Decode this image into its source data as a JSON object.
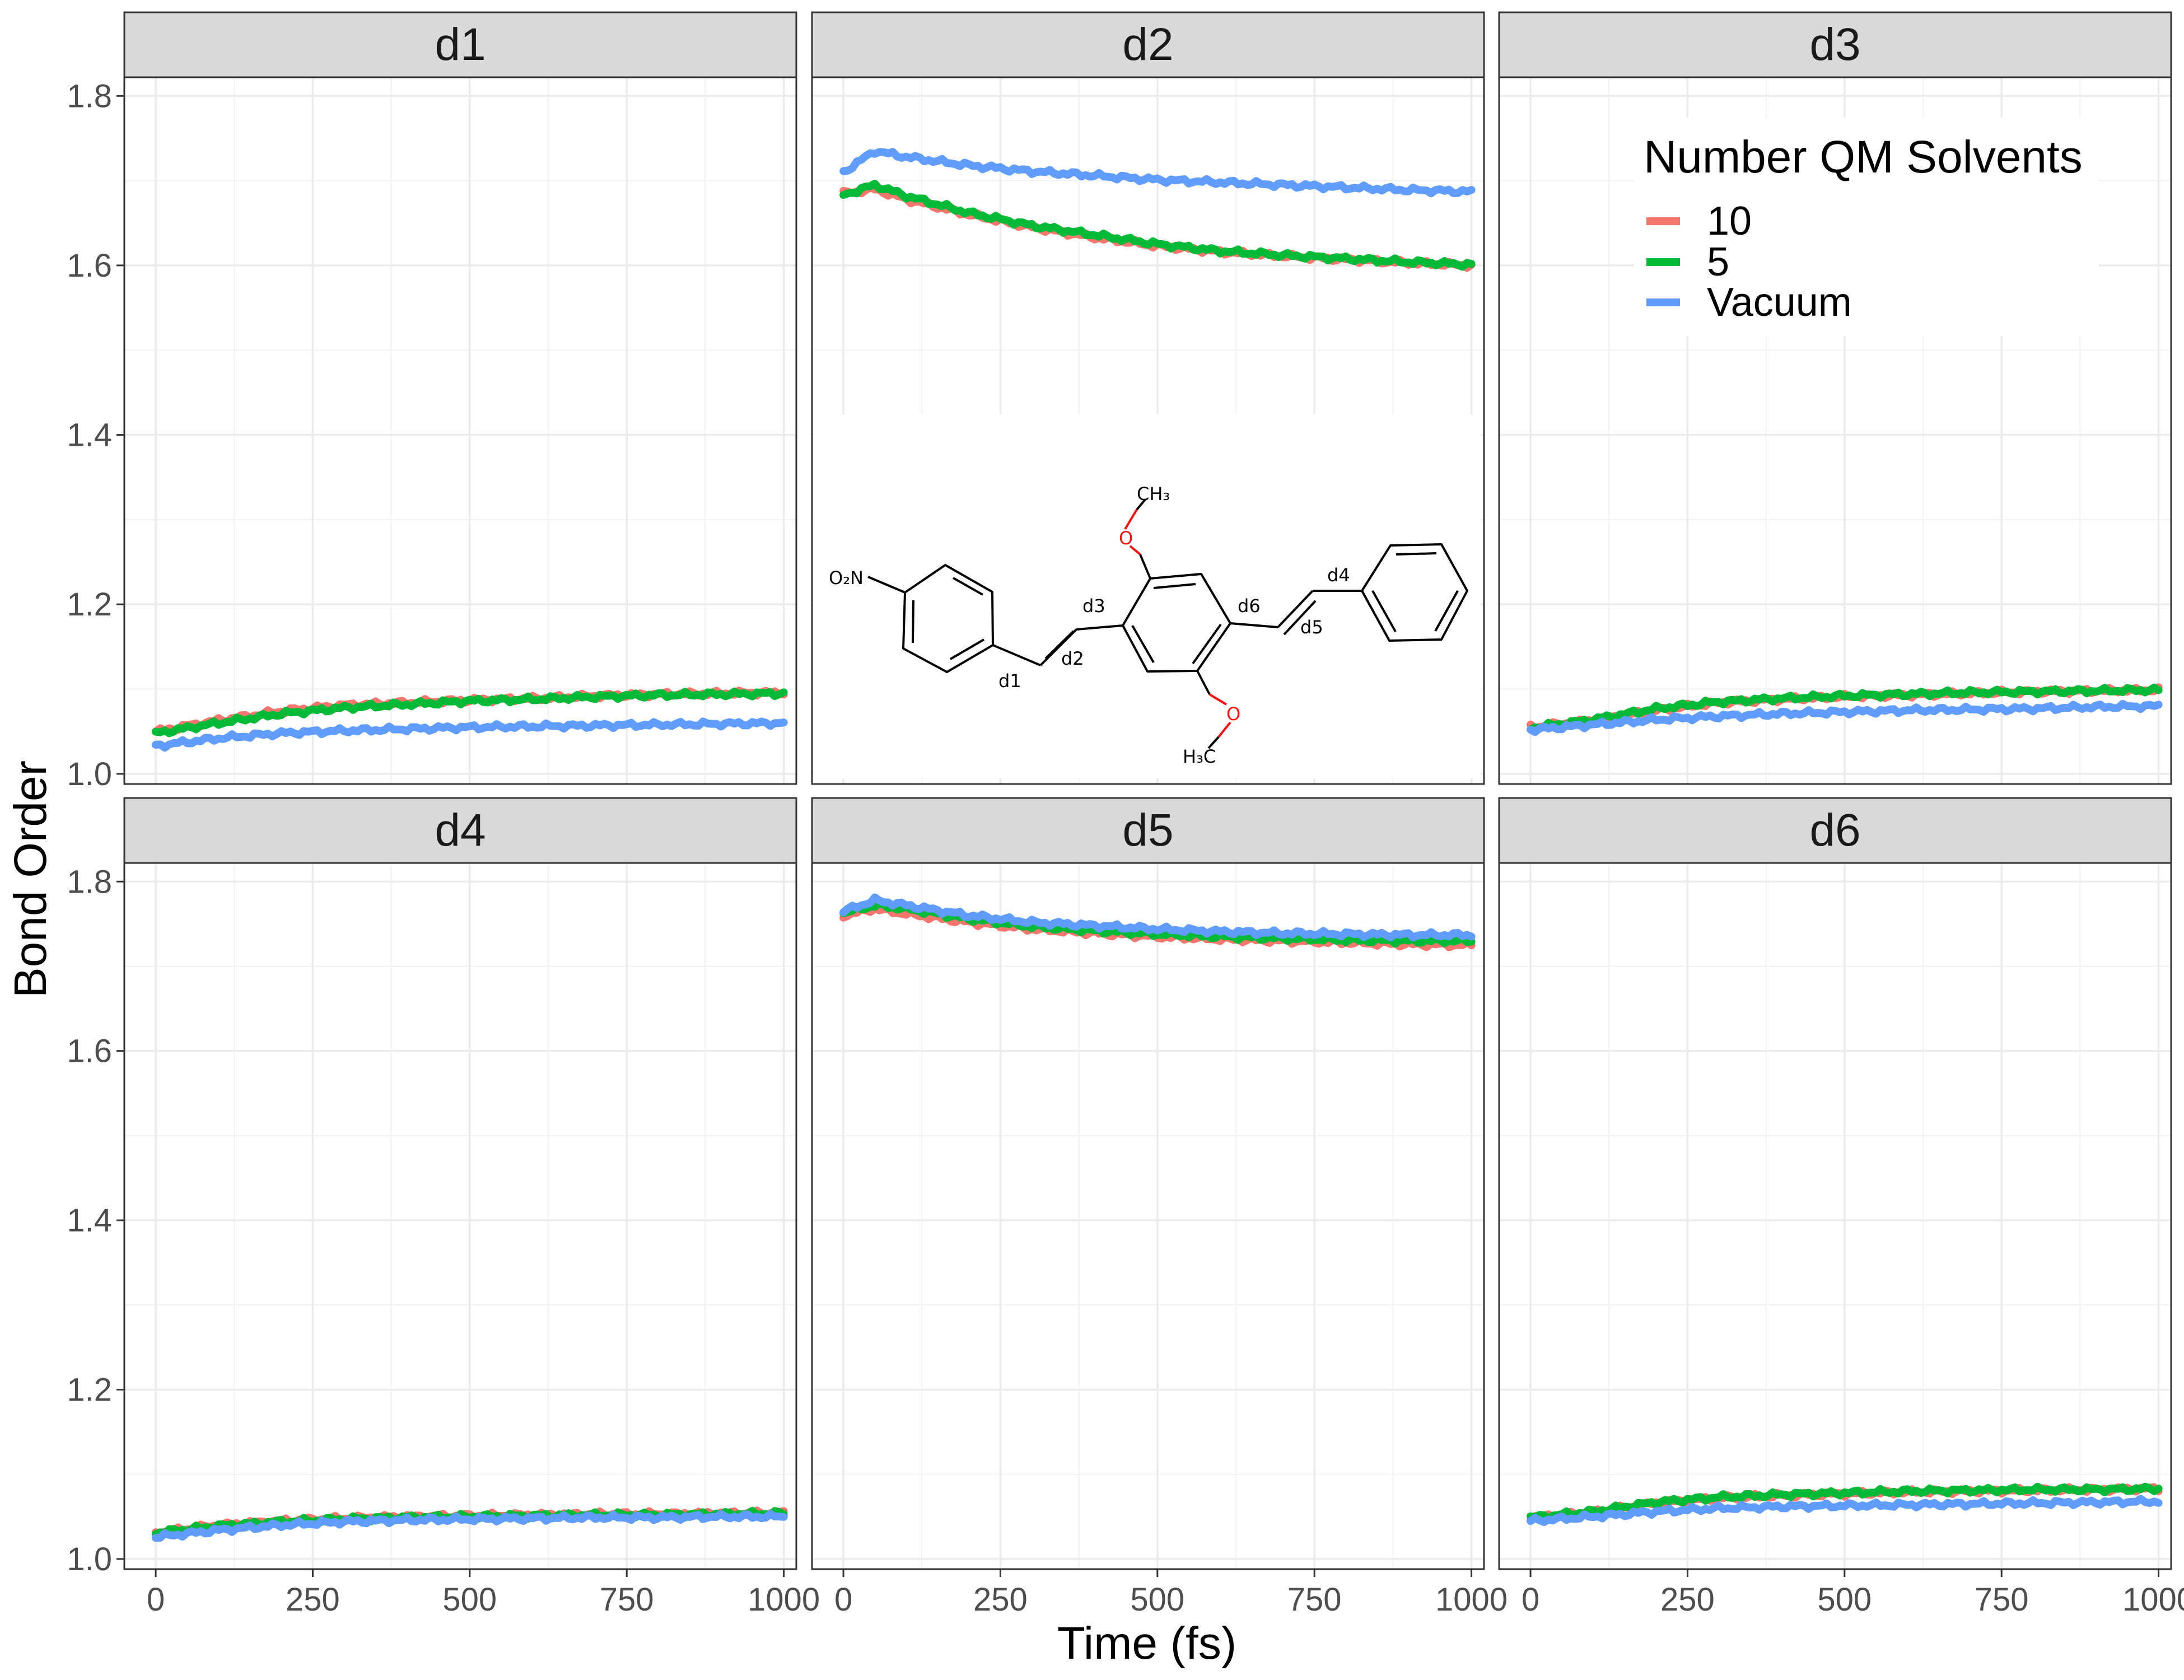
{
  "chart_data": {
    "type": "line",
    "xlabel": "Time (fs)",
    "ylabel": "Bond Order",
    "xlim": [
      -50,
      1020
    ],
    "ylim": [
      0.988,
      1.822
    ],
    "x_ticks": [
      0,
      250,
      500,
      750,
      1000
    ],
    "y_ticks": [
      1.0,
      1.2,
      1.4,
      1.6,
      1.8
    ],
    "y_tick_labels": [
      "1.0",
      "1.2",
      "1.4",
      "1.6",
      "1.8"
    ],
    "grid": true,
    "legend": {
      "title": "Number QM Solvents",
      "position": "top-right",
      "entries": [
        "10",
        "5",
        "Vacuum"
      ]
    },
    "series_colors": {
      "10": "#F8766D",
      "5": "#00BA38",
      "Vacuum": "#619CFF"
    },
    "panels": [
      {
        "title": "d1",
        "x": [
          0,
          100,
          200,
          300,
          400,
          500,
          600,
          700,
          800,
          900,
          1000
        ],
        "series": [
          {
            "name": "10",
            "values": [
              1.05,
              1.063,
              1.074,
              1.081,
              1.084,
              1.087,
              1.089,
              1.092,
              1.094,
              1.095,
              1.096
            ]
          },
          {
            "name": "5",
            "values": [
              1.048,
              1.06,
              1.071,
              1.078,
              1.082,
              1.086,
              1.088,
              1.091,
              1.093,
              1.094,
              1.095
            ]
          },
          {
            "name": "Vacuum",
            "values": [
              1.033,
              1.042,
              1.048,
              1.051,
              1.053,
              1.055,
              1.056,
              1.057,
              1.058,
              1.059,
              1.06
            ]
          }
        ]
      },
      {
        "title": "d2",
        "x": [
          0,
          50,
          100,
          200,
          300,
          400,
          500,
          600,
          700,
          800,
          900,
          1000
        ],
        "series": [
          {
            "name": "10",
            "values": [
              1.685,
              1.69,
              1.678,
              1.66,
              1.645,
              1.633,
              1.623,
              1.616,
              1.611,
              1.607,
              1.603,
              1.6
            ]
          },
          {
            "name": "5",
            "values": [
              1.683,
              1.695,
              1.682,
              1.662,
              1.647,
              1.636,
              1.625,
              1.617,
              1.612,
              1.608,
              1.604,
              1.601
            ]
          },
          {
            "name": "Vacuum",
            "values": [
              1.71,
              1.735,
              1.728,
              1.718,
              1.711,
              1.706,
              1.701,
              1.698,
              1.695,
              1.692,
              1.689,
              1.687
            ]
          }
        ]
      },
      {
        "title": "d3",
        "x": [
          0,
          100,
          200,
          300,
          400,
          500,
          600,
          700,
          800,
          900,
          1000
        ],
        "series": [
          {
            "name": "10",
            "values": [
              1.055,
              1.063,
              1.075,
              1.084,
              1.088,
              1.091,
              1.093,
              1.095,
              1.097,
              1.098,
              1.099
            ]
          },
          {
            "name": "5",
            "values": [
              1.054,
              1.064,
              1.077,
              1.085,
              1.089,
              1.092,
              1.094,
              1.096,
              1.097,
              1.098,
              1.099
            ]
          },
          {
            "name": "Vacuum",
            "values": [
              1.052,
              1.058,
              1.064,
              1.068,
              1.071,
              1.073,
              1.075,
              1.076,
              1.077,
              1.079,
              1.08
            ]
          }
        ]
      },
      {
        "title": "d4",
        "x": [
          0,
          100,
          200,
          300,
          400,
          500,
          600,
          700,
          800,
          900,
          1000
        ],
        "series": [
          {
            "name": "10",
            "values": [
              1.031,
              1.04,
              1.045,
              1.048,
              1.05,
              1.051,
              1.052,
              1.053,
              1.053,
              1.054,
              1.054
            ]
          },
          {
            "name": "5",
            "values": [
              1.031,
              1.039,
              1.044,
              1.047,
              1.049,
              1.05,
              1.051,
              1.052,
              1.052,
              1.053,
              1.054
            ]
          },
          {
            "name": "Vacuum",
            "values": [
              1.026,
              1.034,
              1.04,
              1.044,
              1.046,
              1.047,
              1.048,
              1.049,
              1.049,
              1.05,
              1.05
            ]
          }
        ]
      },
      {
        "title": "d5",
        "x": [
          0,
          50,
          100,
          200,
          300,
          400,
          500,
          600,
          700,
          800,
          900,
          1000
        ],
        "series": [
          {
            "name": "10",
            "values": [
              1.76,
              1.768,
              1.762,
              1.752,
              1.744,
              1.739,
              1.735,
              1.732,
              1.73,
              1.728,
              1.726,
              1.725
            ]
          },
          {
            "name": "5",
            "values": [
              1.763,
              1.772,
              1.768,
              1.756,
              1.747,
              1.742,
              1.738,
              1.735,
              1.733,
              1.731,
              1.73,
              1.73
            ]
          },
          {
            "name": "Vacuum",
            "values": [
              1.765,
              1.778,
              1.772,
              1.76,
              1.752,
              1.748,
              1.744,
              1.741,
              1.739,
              1.738,
              1.737,
              1.737
            ]
          }
        ]
      },
      {
        "title": "d6",
        "x": [
          0,
          100,
          200,
          300,
          400,
          500,
          600,
          700,
          800,
          900,
          1000
        ],
        "series": [
          {
            "name": "10",
            "values": [
              1.049,
              1.055,
              1.066,
              1.072,
              1.075,
              1.077,
              1.079,
              1.08,
              1.081,
              1.082,
              1.083
            ]
          },
          {
            "name": "5",
            "values": [
              1.049,
              1.056,
              1.067,
              1.073,
              1.076,
              1.078,
              1.08,
              1.081,
              1.082,
              1.082,
              1.083
            ]
          },
          {
            "name": "Vacuum",
            "values": [
              1.045,
              1.05,
              1.056,
              1.06,
              1.062,
              1.063,
              1.064,
              1.065,
              1.066,
              1.067,
              1.068
            ]
          }
        ]
      }
    ]
  },
  "inset_molecule": {
    "labels": {
      "no2": "O₂N",
      "ch3_top": "CH₃",
      "h3c_bottom": "H₃C",
      "oxygen": "O",
      "d1": "d1",
      "d2": "d2",
      "d3": "d3",
      "d4": "d4",
      "d5": "d5",
      "d6": "d6"
    },
    "oxygen_color": "#FF0D0D"
  }
}
